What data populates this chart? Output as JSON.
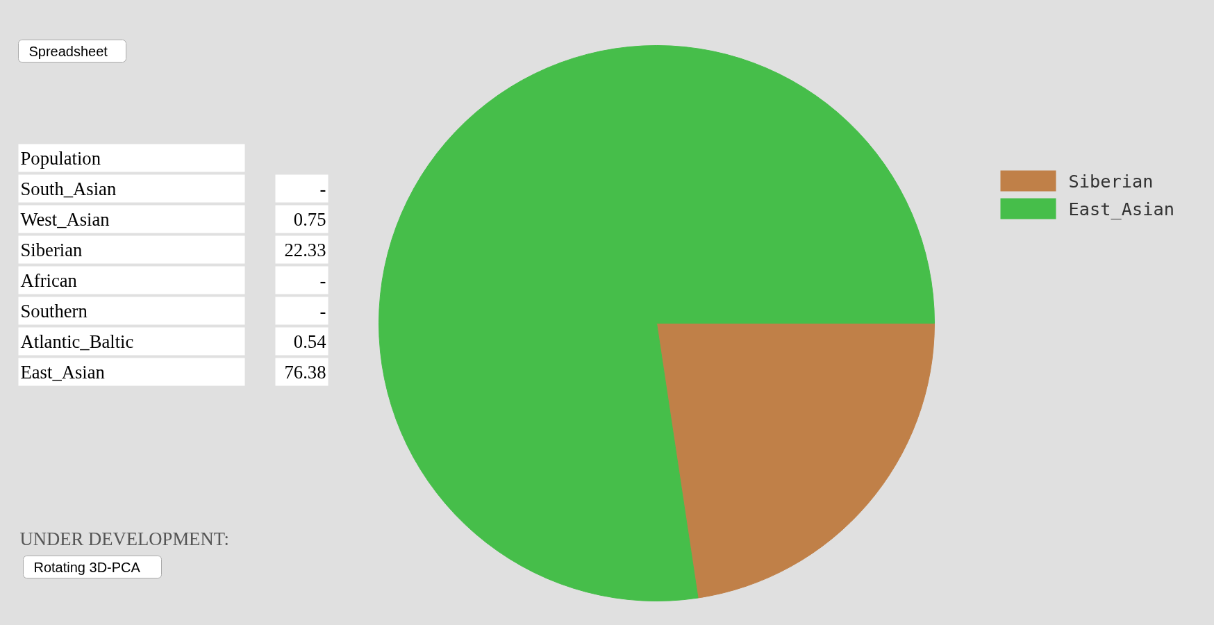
{
  "chart_data": [
    {
      "type": "other",
      "title": "Population",
      "categories": [
        "South_Asian",
        "West_Asian",
        "Siberian",
        "African",
        "Southern",
        "Atlantic_Baltic",
        "East_Asian"
      ],
      "value_labels": [
        "-",
        "0.75",
        "22.33",
        "-",
        "-",
        "0.54",
        "76.38"
      ],
      "annotations": [
        "Spreadsheet",
        "UNDER DEVELOPMENT:",
        "Rotating 3D-PCA"
      ]
    },
    {
      "type": "pie",
      "categories": [
        "Siberian",
        "East_Asian"
      ],
      "values": [
        22.33,
        76.38
      ],
      "colors": [
        "#c08048",
        "#46be4a"
      ],
      "legend": "top right"
    }
  ]
}
